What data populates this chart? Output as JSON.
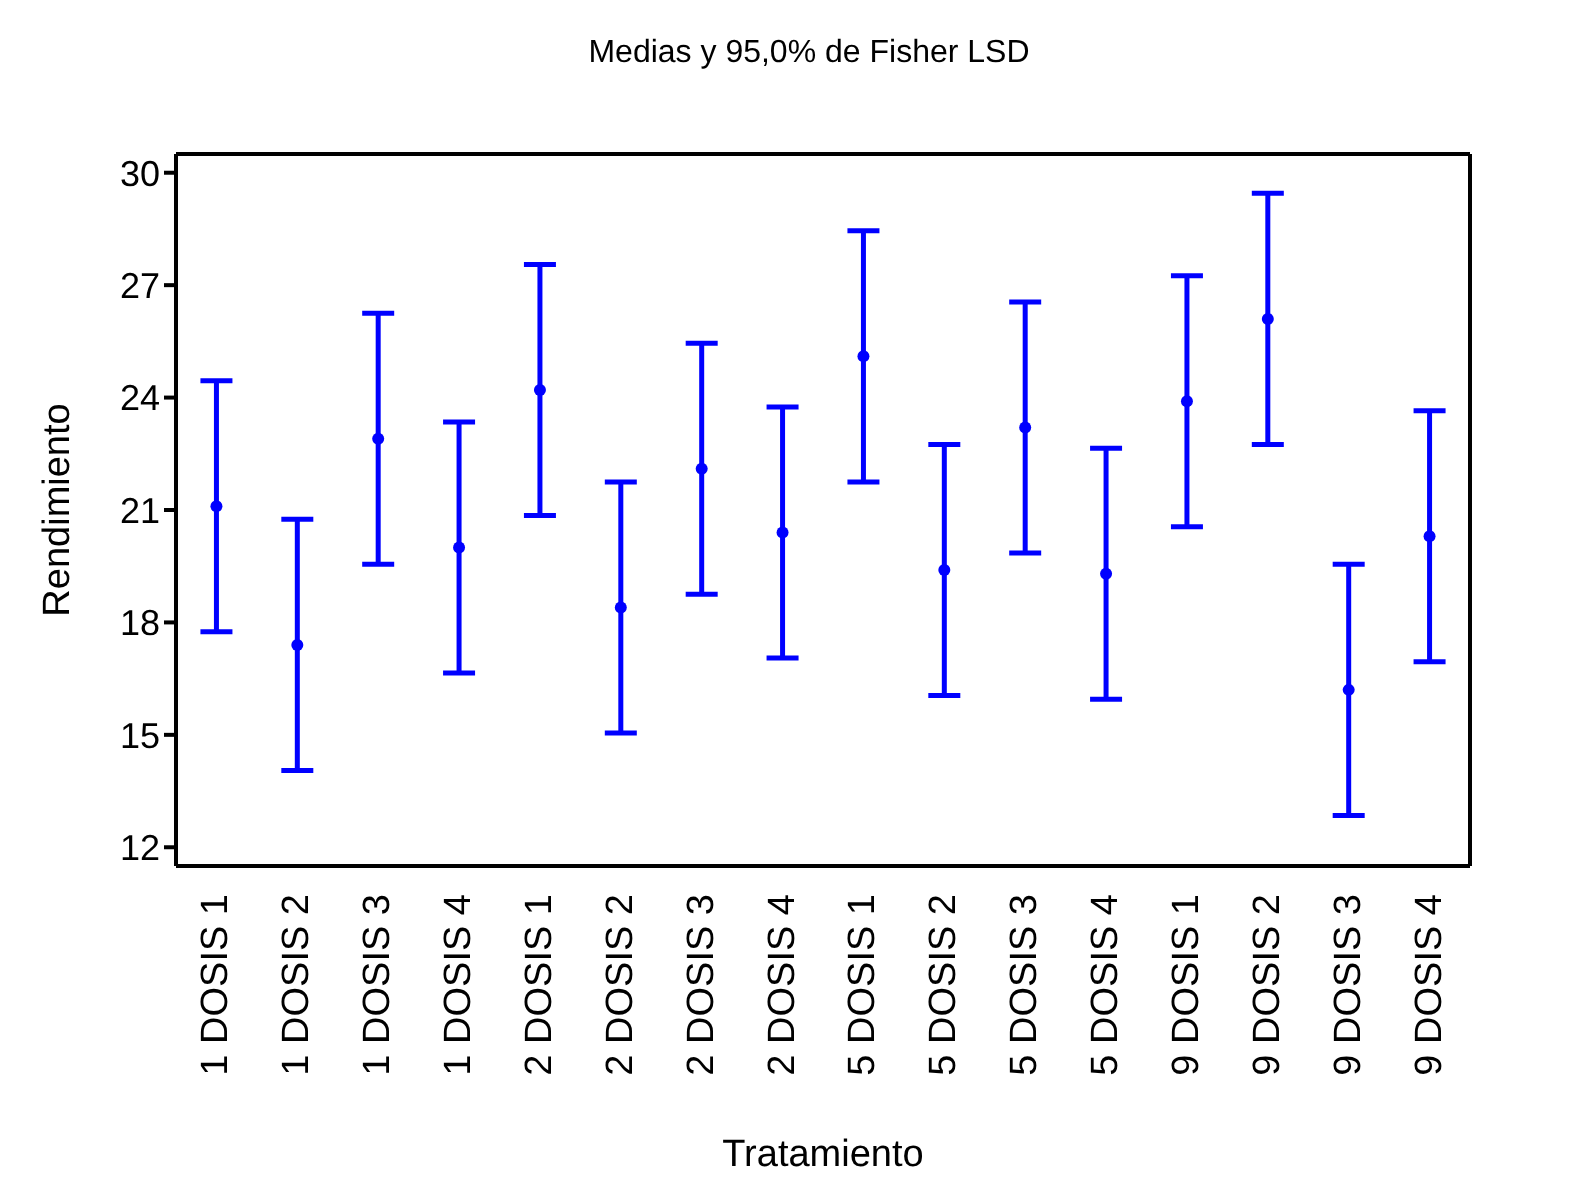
{
  "chart_data": {
    "type": "scatter",
    "title": "Medias y 95,0% de Fisher LSD",
    "xlabel": "Tratamiento",
    "ylabel": "Rendimiento",
    "categories": [
      "1 DOSIS 1",
      "1 DOSIS 2",
      "1 DOSIS 3",
      "1 DOSIS 4",
      "2 DOSIS 1",
      "2 DOSIS 2",
      "2 DOSIS 3",
      "2 DOSIS 4",
      "5 DOSIS 1",
      "5 DOSIS 2",
      "5 DOSIS 3",
      "5 DOSIS 4",
      "9 DOSIS 1",
      "9 DOSIS 2",
      "9 DOSIS 3",
      "9 DOSIS 4"
    ],
    "series": [
      {
        "color": "#0000ff",
        "values": [
          21.1,
          17.4,
          22.9,
          20.0,
          24.2,
          18.4,
          22.1,
          20.4,
          25.1,
          19.4,
          23.2,
          19.3,
          23.9,
          26.1,
          16.2,
          20.3
        ],
        "errors": [
          3.35,
          3.35,
          3.35,
          3.35,
          3.35,
          3.35,
          3.35,
          3.35,
          3.35,
          3.35,
          3.35,
          3.35,
          3.35,
          3.35,
          3.35,
          3.35
        ]
      }
    ],
    "ylim": [
      11.5,
      30.5
    ],
    "yticks": [
      12,
      15,
      18,
      21,
      24,
      27,
      30
    ],
    "grid": false,
    "marker": "circle"
  }
}
